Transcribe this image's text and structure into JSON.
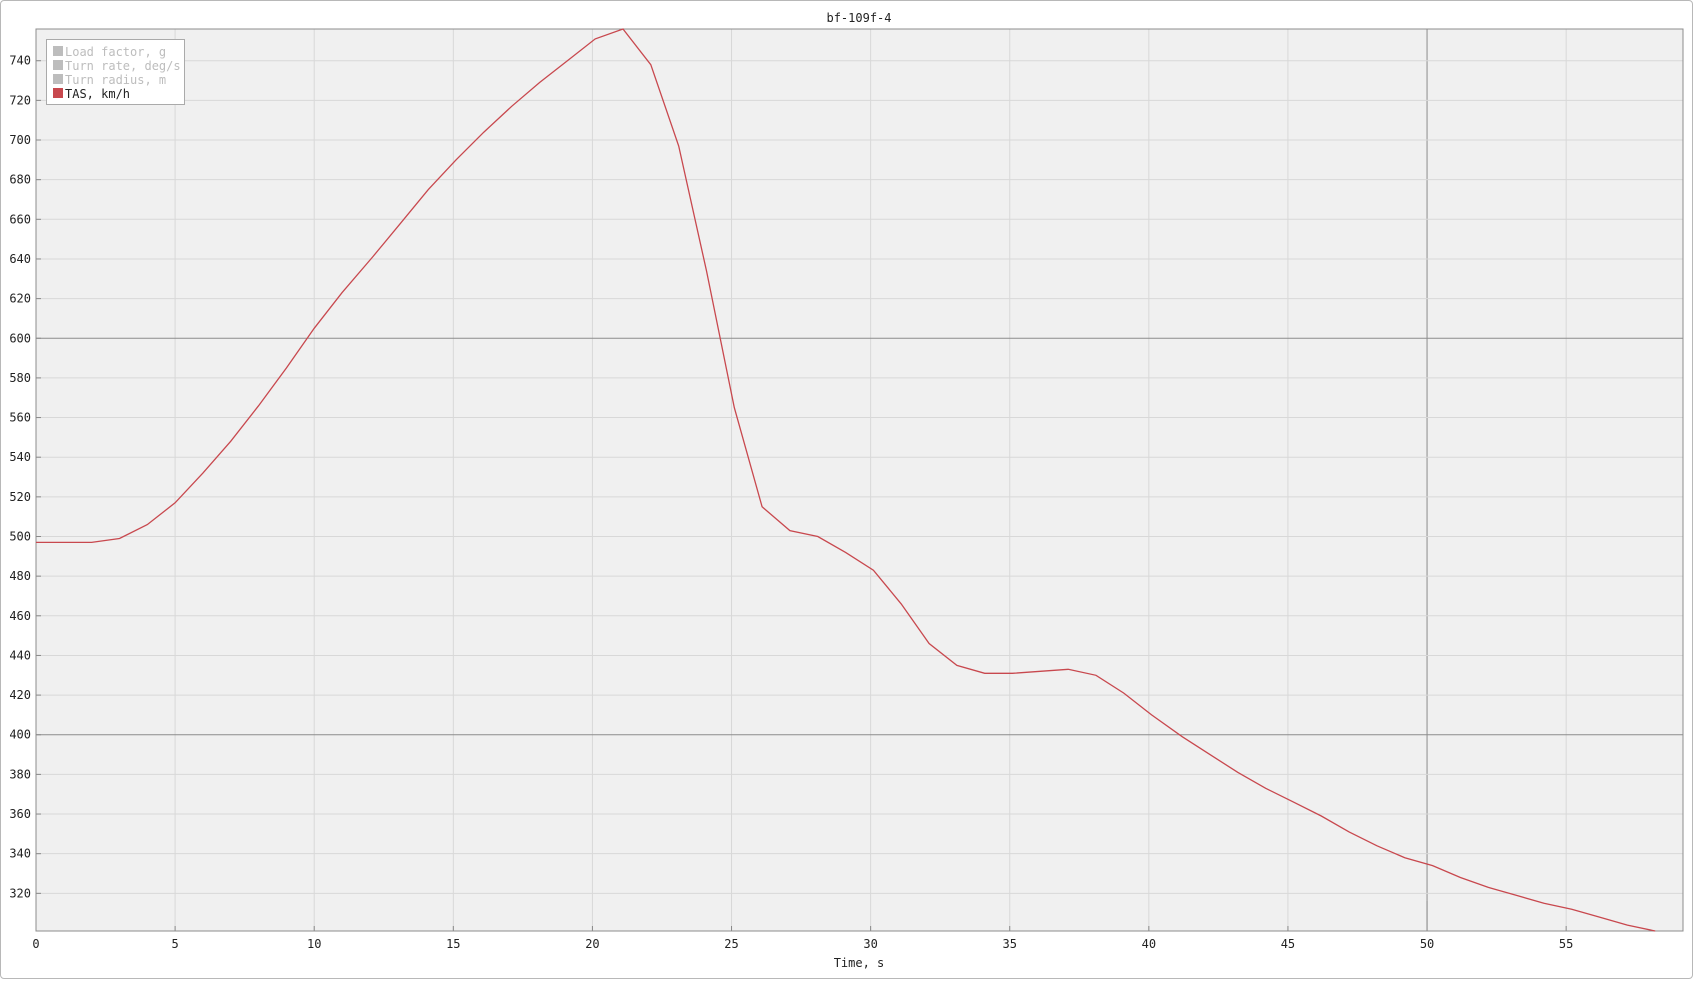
{
  "chart_data": {
    "type": "line",
    "title": "bf-109f-4",
    "xlabel": "Time, s",
    "ylabel": "",
    "xlim": [
      0,
      59.2
    ],
    "ylim": [
      301,
      756
    ],
    "xticks": [
      0,
      5,
      10,
      15,
      20,
      25,
      30,
      35,
      40,
      45,
      50,
      55
    ],
    "yticks": [
      320,
      340,
      360,
      380,
      400,
      420,
      440,
      460,
      480,
      500,
      520,
      540,
      560,
      580,
      600,
      620,
      640,
      660,
      680,
      700,
      720,
      740
    ],
    "major_x": [
      50
    ],
    "major_y": [
      400,
      600
    ],
    "grid": true,
    "legend_position": "top-left",
    "legend": [
      {
        "label": "Load factor, g",
        "color": "#bdbdbd",
        "active": false
      },
      {
        "label": "Turn rate, deg/s",
        "color": "#bdbdbd",
        "active": false
      },
      {
        "label": "Turn radius, m",
        "color": "#bdbdbd",
        "active": false
      },
      {
        "label": "TAS, km/h",
        "color": "#c8484e",
        "active": true
      }
    ],
    "series": [
      {
        "name": "TAS, km/h",
        "color": "#c8484e",
        "x": [
          0,
          1,
          2,
          3,
          4,
          5,
          6,
          7,
          8,
          9,
          10,
          11,
          12.1,
          13.1,
          14.1,
          15.1,
          16.1,
          17.1,
          18.1,
          19.1,
          20.1,
          21.1,
          22.1,
          23.1,
          24.1,
          25.1,
          26.1,
          27.1,
          28.1,
          29.1,
          30.1,
          31.1,
          32.1,
          33.1,
          34.1,
          35.1,
          36.1,
          37.1,
          38.1,
          39.1,
          40.1,
          41.2,
          42.2,
          43.2,
          44.2,
          45.2,
          46.2,
          47.2,
          48.2,
          49.2,
          50.2,
          51.2,
          52.2,
          53.2,
          54.2,
          55.2,
          56.2,
          57.2,
          58.2
        ],
        "y": [
          497,
          497,
          497,
          499,
          506,
          517,
          532,
          548,
          566,
          585,
          605,
          623,
          641,
          658,
          675,
          690,
          704,
          717,
          729,
          740,
          751,
          756,
          738,
          697,
          634,
          565,
          515,
          503,
          500,
          492,
          483,
          466,
          446,
          435,
          431,
          431,
          432,
          433,
          430,
          421,
          410,
          399,
          390,
          381,
          373,
          366,
          359,
          351,
          344,
          338,
          334,
          328,
          323,
          319,
          315,
          312,
          308,
          304,
          301
        ]
      }
    ]
  }
}
